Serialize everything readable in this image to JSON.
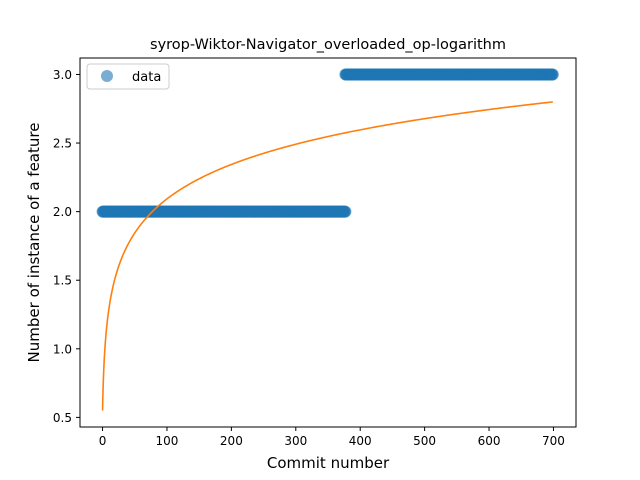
{
  "chart_data": {
    "type": "scatter",
    "title": "syrop-Wiktor-Navigator_overloaded_op-logarithm",
    "xlabel": "Commit number",
    "ylabel": "Number of instance of a feature",
    "xlim": [
      -35,
      735
    ],
    "ylim": [
      0.43,
      3.12
    ],
    "x_ticks": [
      0,
      100,
      200,
      300,
      400,
      500,
      600,
      700
    ],
    "y_ticks": [
      0.5,
      1.0,
      1.5,
      2.0,
      2.5,
      3.0
    ],
    "x_tick_labels": [
      "0",
      "100",
      "200",
      "300",
      "400",
      "500",
      "600",
      "700"
    ],
    "y_tick_labels": [
      "0.5",
      "1.0",
      "1.5",
      "2.0",
      "2.5",
      "3.0"
    ],
    "legend": {
      "placement": "top-left",
      "entries": [
        "data"
      ]
    },
    "grid": false,
    "series": [
      {
        "name": "data",
        "kind": "scatter",
        "color": "#1f77b4",
        "alpha": 0.6,
        "segments": [
          {
            "x_from": 0,
            "x_to": 377,
            "y": 2.0
          },
          {
            "x_from": 377,
            "x_to": 699,
            "y": 3.0
          }
        ]
      },
      {
        "kind": "line",
        "color": "#ff7f0e",
        "fit": "logarithmic",
        "x_from": 0,
        "x_to": 699,
        "points": [
          [
            0,
            0.55
          ],
          [
            6,
            1.05
          ],
          [
            20,
            1.55
          ],
          [
            40,
            1.8
          ],
          [
            70,
            2.03
          ],
          [
            100,
            2.17
          ],
          [
            200,
            2.39
          ],
          [
            300,
            2.52
          ],
          [
            400,
            2.61
          ],
          [
            500,
            2.69
          ],
          [
            600,
            2.75
          ],
          [
            699,
            2.8
          ]
        ]
      }
    ]
  }
}
